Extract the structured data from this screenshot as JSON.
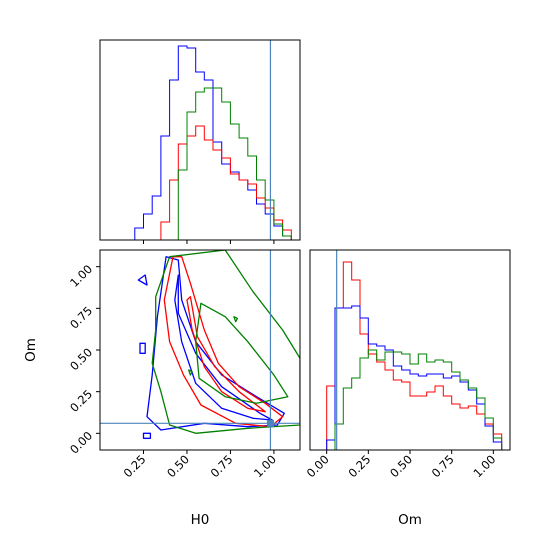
{
  "chart_data": [
    {
      "type": "histogram",
      "panel": "H0 marginal",
      "xlim": [
        0.0,
        1.15
      ],
      "truth_x": 0.98,
      "series": [
        {
          "color": "#0000ff",
          "edges": [
            0.15,
            0.2,
            0.25,
            0.3,
            0.35,
            0.4,
            0.45,
            0.5,
            0.55,
            0.6,
            0.65,
            0.7,
            0.75,
            0.8,
            0.85,
            0.9,
            0.95,
            1.0,
            1.05,
            1.1
          ],
          "values": [
            0.0,
            0.06,
            0.13,
            0.22,
            0.52,
            0.8,
            0.97,
            0.96,
            0.84,
            0.8,
            0.49,
            0.38,
            0.34,
            0.3,
            0.25,
            0.18,
            0.13,
            0.07,
            0.02
          ]
        },
        {
          "color": "#ff0000",
          "edges": [
            0.35,
            0.4,
            0.45,
            0.5,
            0.55,
            0.6,
            0.65,
            0.7,
            0.75,
            0.8,
            0.85,
            0.9,
            0.95,
            1.0,
            1.05,
            1.1
          ],
          "values": [
            0.09,
            0.3,
            0.48,
            0.52,
            0.57,
            0.5,
            0.45,
            0.41,
            0.33,
            0.3,
            0.28,
            0.21,
            0.16,
            0.1,
            0.05
          ]
        },
        {
          "color": "#008000",
          "edges": [
            0.45,
            0.5,
            0.55,
            0.6,
            0.65,
            0.7,
            0.75,
            0.8,
            0.85,
            0.9,
            0.95,
            1.0,
            1.05,
            1.1
          ],
          "values": [
            0.35,
            0.64,
            0.74,
            0.76,
            0.76,
            0.69,
            0.58,
            0.51,
            0.42,
            0.3,
            0.2,
            0.08,
            0.02
          ]
        }
      ]
    },
    {
      "type": "contour",
      "panel": "H0 vs Om",
      "xlabel": "H0",
      "ylabel": "Om",
      "xlim": [
        0.0,
        1.15
      ],
      "ylim": [
        -0.1,
        1.1
      ],
      "xticks": [
        "0.25",
        "0.50",
        "0.75",
        "1.00"
      ],
      "yticks": [
        "0.00",
        "0.25",
        "0.50",
        "0.75",
        "1.00"
      ],
      "truth": [
        0.98,
        0.06
      ],
      "series": [
        {
          "color": "#0000ff",
          "contours": [
            [
              [
                0.38,
                1.06
              ],
              [
                0.33,
                0.7
              ],
              [
                0.3,
                0.35
              ],
              [
                0.27,
                0.1
              ],
              [
                0.35,
                0.02
              ],
              [
                0.6,
                0.06
              ],
              [
                0.85,
                0.04
              ],
              [
                1.02,
                0.05
              ],
              [
                1.06,
                0.12
              ],
              [
                0.9,
                0.22
              ],
              [
                0.7,
                0.35
              ],
              [
                0.55,
                0.55
              ],
              [
                0.47,
                0.8
              ],
              [
                0.45,
                1.04
              ]
            ],
            [
              [
                0.45,
                0.95
              ],
              [
                0.45,
                0.72
              ],
              [
                0.55,
                0.48
              ],
              [
                0.7,
                0.28
              ],
              [
                0.92,
                0.12
              ],
              [
                0.99,
                0.08
              ],
              [
                0.88,
                0.09
              ],
              [
                0.7,
                0.15
              ],
              [
                0.55,
                0.3
              ],
              [
                0.47,
                0.55
              ],
              [
                0.43,
                0.8
              ]
            ],
            [
              [
                0.26,
                0.54
              ],
              [
                0.23,
                0.54
              ],
              [
                0.23,
                0.48
              ],
              [
                0.26,
                0.48
              ]
            ],
            [
              [
                0.25,
                0.0
              ],
              [
                0.29,
                0.0
              ],
              [
                0.29,
                -0.03
              ],
              [
                0.25,
                -0.03
              ]
            ],
            [
              [
                0.22,
                0.92
              ],
              [
                0.26,
                0.95
              ],
              [
                0.27,
                0.89
              ]
            ]
          ]
        },
        {
          "color": "#ff0000",
          "contours": [
            [
              [
                0.42,
                1.06
              ],
              [
                0.37,
                0.8
              ],
              [
                0.4,
                0.55
              ],
              [
                0.48,
                0.35
              ],
              [
                0.58,
                0.17
              ],
              [
                0.78,
                0.06
              ],
              [
                0.98,
                0.04
              ],
              [
                1.05,
                0.1
              ],
              [
                0.95,
                0.18
              ],
              [
                0.8,
                0.28
              ],
              [
                0.68,
                0.42
              ],
              [
                0.6,
                0.62
              ],
              [
                0.52,
                0.9
              ],
              [
                0.47,
                1.06
              ]
            ],
            [
              [
                0.52,
                0.82
              ],
              [
                0.56,
                0.58
              ],
              [
                0.66,
                0.4
              ],
              [
                0.8,
                0.25
              ],
              [
                0.95,
                0.13
              ],
              [
                0.85,
                0.15
              ],
              [
                0.7,
                0.25
              ],
              [
                0.6,
                0.4
              ],
              [
                0.53,
                0.62
              ],
              [
                0.5,
                0.8
              ]
            ]
          ]
        },
        {
          "color": "#008000",
          "contours": [
            [
              [
                0.72,
                1.1
              ],
              [
                0.88,
                0.85
              ],
              [
                1.05,
                0.62
              ],
              [
                1.15,
                0.45
              ],
              [
                1.15,
                0.05
              ],
              [
                0.85,
                0.03
              ],
              [
                0.55,
                0.0
              ],
              [
                0.4,
                0.05
              ],
              [
                0.35,
                0.25
              ],
              [
                0.3,
                0.42
              ],
              [
                0.32,
                0.62
              ],
              [
                0.32,
                0.82
              ],
              [
                0.4,
                1.06
              ]
            ],
            [
              [
                0.58,
                0.78
              ],
              [
                0.72,
                0.7
              ],
              [
                0.85,
                0.55
              ],
              [
                1.0,
                0.35
              ],
              [
                1.08,
                0.22
              ],
              [
                0.9,
                0.18
              ],
              [
                0.72,
                0.22
              ],
              [
                0.57,
                0.33
              ],
              [
                0.55,
                0.55
              ]
            ],
            [
              [
                0.77,
                0.7
              ],
              [
                0.79,
                0.69
              ],
              [
                0.78,
                0.67
              ]
            ],
            [
              [
                0.51,
                0.38
              ],
              [
                0.53,
                0.37
              ],
              [
                0.52,
                0.35
              ]
            ]
          ]
        }
      ]
    },
    {
      "type": "histogram",
      "panel": "Om marginal",
      "xlabel": "Om",
      "xlim": [
        -0.1,
        1.1
      ],
      "xticks": [
        "0.00",
        "0.25",
        "0.50",
        "0.75",
        "1.00"
      ],
      "truth_x": 0.06,
      "series": [
        {
          "color": "#ff0000",
          "edges": [
            -0.05,
            0.0,
            0.05,
            0.1,
            0.15,
            0.2,
            0.25,
            0.3,
            0.35,
            0.4,
            0.45,
            0.5,
            0.55,
            0.6,
            0.65,
            0.7,
            0.75,
            0.8,
            0.85,
            0.9,
            0.95,
            1.0,
            1.05
          ],
          "values": [
            0.0,
            0.32,
            0.71,
            0.94,
            0.85,
            0.58,
            0.48,
            0.44,
            0.4,
            0.35,
            0.34,
            0.27,
            0.27,
            0.29,
            0.32,
            0.27,
            0.23,
            0.21,
            0.22,
            0.18,
            0.13,
            0.08
          ]
        },
        {
          "color": "#0000ff",
          "edges": [
            -0.05,
            0.0,
            0.05,
            0.1,
            0.15,
            0.2,
            0.25,
            0.3,
            0.35,
            0.4,
            0.45,
            0.5,
            0.55,
            0.6,
            0.65,
            0.7,
            0.75,
            0.8,
            0.85,
            0.9,
            0.95,
            1.0,
            1.05
          ],
          "values": [
            0.0,
            0.05,
            0.71,
            0.71,
            0.72,
            0.66,
            0.53,
            0.52,
            0.5,
            0.42,
            0.4,
            0.38,
            0.37,
            0.38,
            0.38,
            0.36,
            0.37,
            0.34,
            0.3,
            0.23,
            0.12,
            0.04
          ]
        },
        {
          "color": "#008000",
          "edges": [
            -0.05,
            0.0,
            0.05,
            0.1,
            0.15,
            0.2,
            0.25,
            0.3,
            0.35,
            0.4,
            0.45,
            0.5,
            0.55,
            0.6,
            0.65,
            0.7,
            0.75,
            0.8,
            0.85,
            0.9,
            0.95,
            1.0,
            1.05
          ],
          "values": [
            0.0,
            0.0,
            0.13,
            0.31,
            0.36,
            0.46,
            0.5,
            0.45,
            0.49,
            0.49,
            0.48,
            0.43,
            0.48,
            0.44,
            0.45,
            0.44,
            0.39,
            0.35,
            0.31,
            0.26,
            0.16,
            0.06
          ]
        }
      ]
    }
  ]
}
